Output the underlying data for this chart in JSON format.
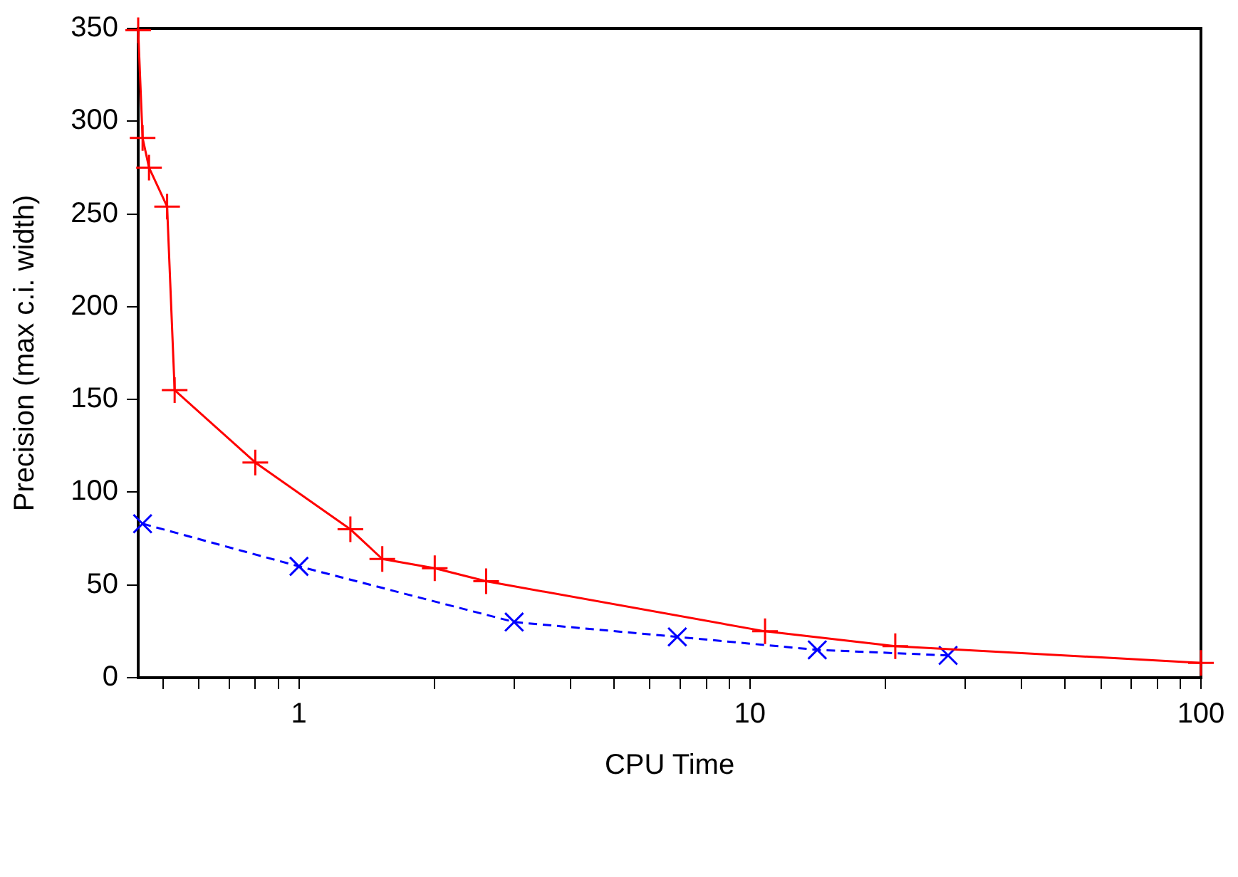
{
  "chart_data": {
    "type": "line",
    "xlabel": "CPU Time",
    "ylabel": "Precision (max c.i. width)",
    "log": "x",
    "xlim": [
      0.44,
      100
    ],
    "ylim": [
      0,
      350
    ],
    "xticks": [
      {
        "value": 0.5,
        "label": null
      },
      {
        "value": 0.6,
        "label": null
      },
      {
        "value": 0.7,
        "label": null
      },
      {
        "value": 0.8,
        "label": null
      },
      {
        "value": 0.9,
        "label": null
      },
      1,
      {
        "value": 2,
        "label": null
      },
      {
        "value": 3,
        "label": null
      },
      {
        "value": 4,
        "label": null
      },
      {
        "value": 5,
        "label": null
      },
      {
        "value": 6,
        "label": null
      },
      {
        "value": 7,
        "label": null
      },
      {
        "value": 8,
        "label": null
      },
      {
        "value": 9,
        "label": null
      },
      10,
      {
        "value": 20,
        "label": null
      },
      {
        "value": 30,
        "label": null
      },
      {
        "value": 40,
        "label": null
      },
      {
        "value": 50,
        "label": null
      },
      {
        "value": 60,
        "label": null
      },
      {
        "value": 70,
        "label": null
      },
      {
        "value": 80,
        "label": null
      },
      {
        "value": 90,
        "label": null
      },
      100
    ],
    "yticks": [
      0,
      50,
      100,
      150,
      200,
      250,
      300,
      350
    ],
    "grid": false,
    "legend": false,
    "series": [
      {
        "color": "#ff0000",
        "marker": "cross",
        "line_style": "solid",
        "x": [
          0.44,
          0.45,
          0.465,
          0.51,
          0.53,
          0.8,
          1.3,
          1.53,
          2.0,
          2.6,
          10.8,
          21,
          100
        ],
        "values": [
          349,
          291,
          275,
          254,
          155,
          116,
          80,
          64,
          59,
          52,
          25,
          17,
          8
        ]
      },
      {
        "color": "#0000ff",
        "marker": "cross",
        "line_style": "dashed",
        "x": [
          0.45,
          1,
          3.0,
          6.9,
          14.1,
          27.5
        ],
        "values": [
          83,
          60,
          30,
          22,
          15,
          12
        ]
      }
    ]
  }
}
